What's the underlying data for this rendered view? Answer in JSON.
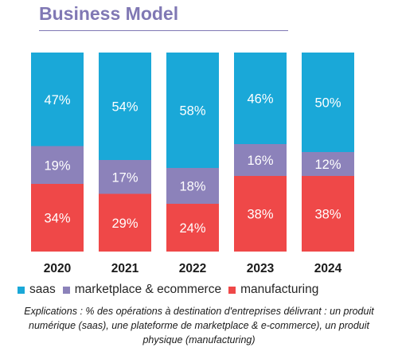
{
  "chart_data": {
    "type": "bar",
    "stacked": true,
    "title": "Business Model",
    "categories": [
      "2020",
      "2021",
      "2022",
      "2023",
      "2024"
    ],
    "series": [
      {
        "name": "manufacturing",
        "color": "#ef4848",
        "values": [
          34,
          29,
          24,
          38,
          38
        ],
        "labels": [
          "34%",
          "29%",
          "24%",
          "38%",
          "38%"
        ]
      },
      {
        "name": "marketplace & ecommerce",
        "color": "#8c82ba",
        "values": [
          19,
          17,
          18,
          16,
          12
        ],
        "labels": [
          "19%",
          "17%",
          "18%",
          "16%",
          "12%"
        ]
      },
      {
        "name": "saas",
        "color": "#1aa8d8",
        "values": [
          47,
          54,
          58,
          46,
          50
        ],
        "labels": [
          "47%",
          "54%",
          "58%",
          "46%",
          "50%"
        ]
      }
    ],
    "legend_order": [
      "saas",
      "marketplace & ecommerce",
      "manufacturing"
    ],
    "ylim": [
      0,
      100
    ],
    "grid": false,
    "legend_position": "bottom",
    "footnote": "Explications :  % des opérations à destination d'entreprises délivrant : un produit numérique (saas), une plateforme de marketplace & e-commerce), un produit physique (manufacturing)"
  }
}
